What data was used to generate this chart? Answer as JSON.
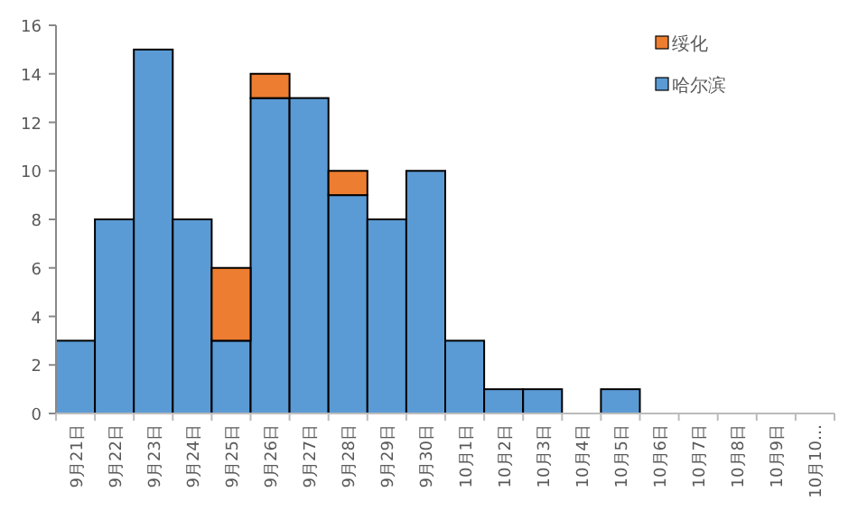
{
  "chart_data": {
    "type": "bar",
    "stacked": true,
    "legend": "top right",
    "grid": false,
    "categories": [
      "9月21日",
      "9月22日",
      "9月23日",
      "9月24日",
      "9月25日",
      "9月26日",
      "9月27日",
      "9月28日",
      "9月29日",
      "9月30日",
      "10月1日",
      "10月2日",
      "10月3日",
      "10月4日",
      "10月5日",
      "10月6日",
      "10月7日",
      "10月8日",
      "10月9日",
      "10月10…"
    ],
    "series": [
      {
        "name": "哈尔滨",
        "color": "#5b9bd5",
        "values": [
          3,
          8,
          15,
          8,
          3,
          13,
          13,
          9,
          8,
          10,
          3,
          1,
          1,
          0,
          1,
          0,
          0,
          0,
          0,
          0
        ]
      },
      {
        "name": "绥化",
        "color": "#ed7d31",
        "values": [
          0,
          0,
          0,
          0,
          3,
          1,
          0,
          1,
          0,
          0,
          0,
          0,
          0,
          0,
          0,
          0,
          0,
          0,
          0,
          0
        ]
      }
    ],
    "ylim": [
      0,
      16
    ],
    "yticks": [
      0,
      2,
      4,
      6,
      8,
      10,
      12,
      14,
      16
    ]
  }
}
